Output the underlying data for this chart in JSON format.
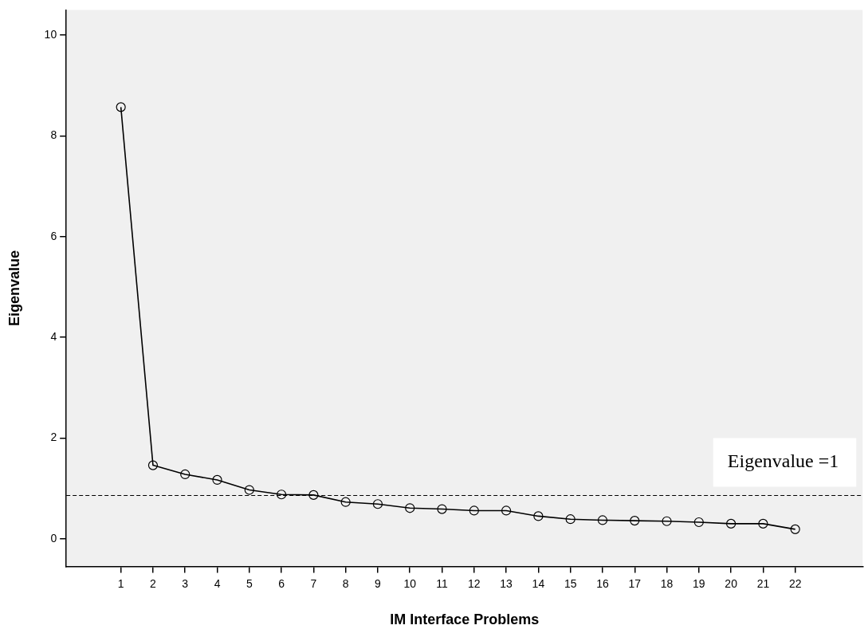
{
  "chart_data": {
    "type": "line",
    "xlabel": "IM Interface Problems",
    "ylabel": "Eigenvalue",
    "x": [
      1,
      2,
      3,
      4,
      5,
      6,
      7,
      8,
      9,
      10,
      11,
      12,
      13,
      14,
      15,
      16,
      17,
      18,
      19,
      20,
      21,
      22
    ],
    "series": [
      {
        "color": "#000000",
        "values": [
          8.57,
          1.46,
          1.28,
          1.17,
          0.97,
          0.88,
          0.87,
          0.73,
          0.69,
          0.61,
          0.59,
          0.56,
          0.56,
          0.45,
          0.39,
          0.37,
          0.36,
          0.35,
          0.33,
          0.3,
          0.3,
          0.19
        ]
      }
    ],
    "xlim": [
      -0.7,
      24.1
    ],
    "xticks": [
      1,
      2,
      3,
      4,
      5,
      6,
      7,
      8,
      9,
      10,
      11,
      12,
      13,
      14,
      15,
      16,
      17,
      18,
      19,
      20,
      21,
      22
    ],
    "ylim": [
      -0.55,
      10.5
    ],
    "yticks": [
      0,
      2,
      4,
      6,
      8,
      10
    ],
    "ref_lines": [
      {
        "axis": "y",
        "value": 0.86,
        "label": "Eigenvalue =1",
        "line_style": "dashed",
        "color": "#000000"
      }
    ],
    "grid": false,
    "legend": false,
    "marker": "circle",
    "line_style": "solid"
  }
}
